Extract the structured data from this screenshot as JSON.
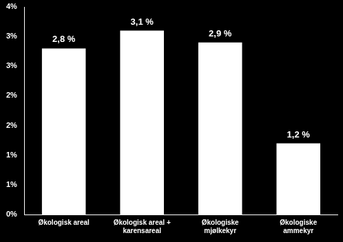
{
  "chart_data": {
    "type": "bar",
    "categories": [
      "Økologisk areal",
      "Økologisk areal + karensareal",
      "Økologiske mjølkekyr",
      "Økologiske ammekyr"
    ],
    "values": [
      2.8,
      3.1,
      2.9,
      1.2
    ],
    "value_labels": [
      "2,8 %",
      "3,1 %",
      "2,9 %",
      "1,2 %"
    ],
    "data_labels": true,
    "color": "#ffffff",
    "ylim": [
      0,
      3.5
    ],
    "yticks": [
      {
        "value": 0,
        "label": "0%"
      },
      {
        "value": 0.5,
        "label": "1%"
      },
      {
        "value": 1,
        "label": "1%"
      },
      {
        "value": 1.5,
        "label": "2%"
      },
      {
        "value": 2,
        "label": "2%"
      },
      {
        "value": 2.5,
        "label": "3%"
      },
      {
        "value": 3,
        "label": "3%"
      },
      {
        "value": 3.5,
        "label": "4%"
      }
    ],
    "grid": false
  }
}
